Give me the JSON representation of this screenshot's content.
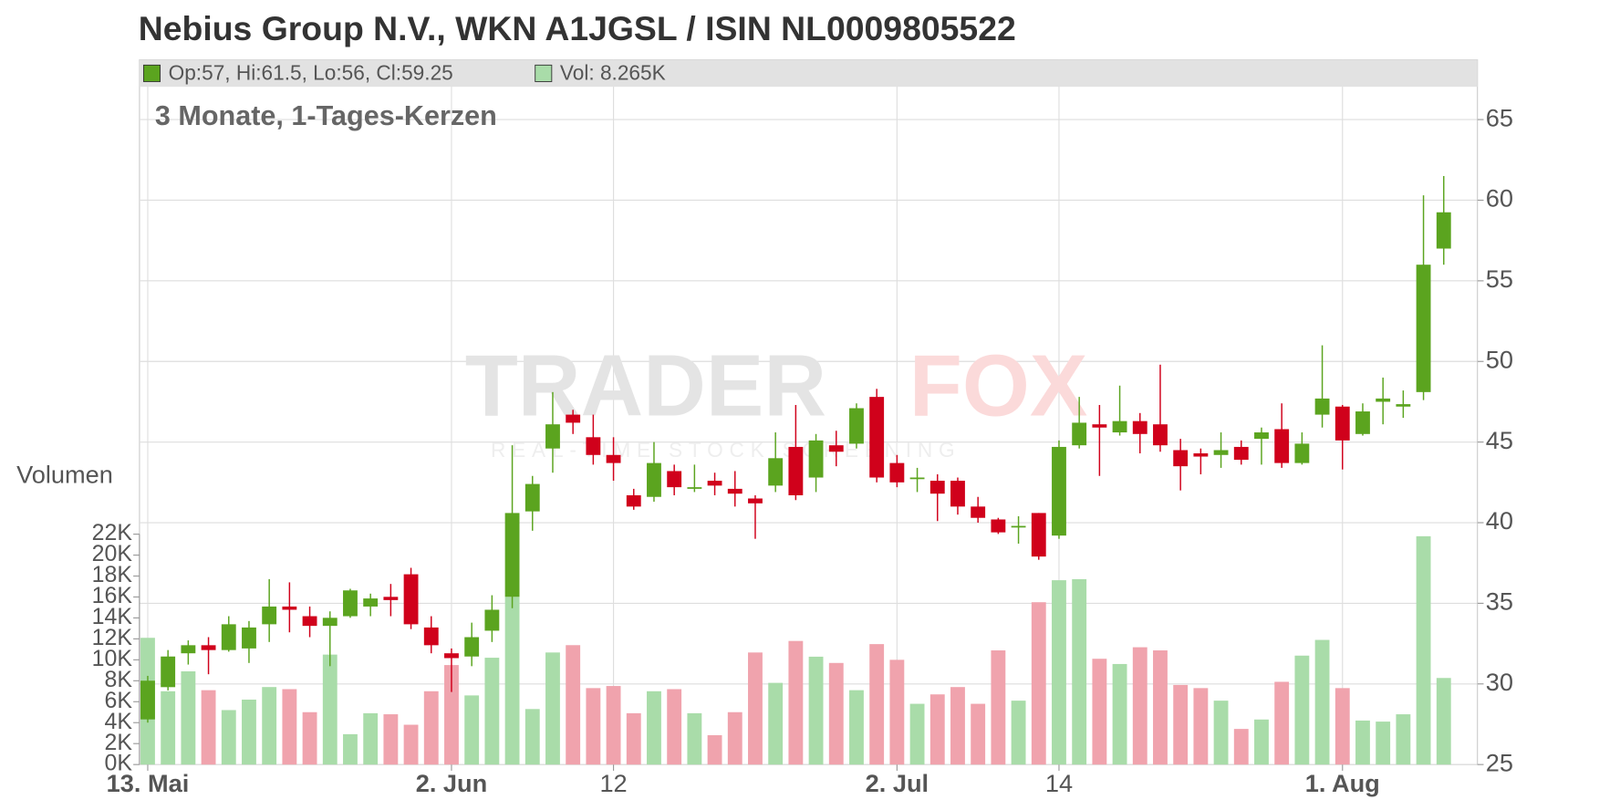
{
  "chart_data": {
    "type": "candlestick",
    "title": "Nebius Group N.V., WKN A1JGSL / ISIN NL0009805522",
    "subtitle": "3 Monate, 1-Tages-Kerzen",
    "header_ohlc": "Op:57, Hi:61.5, Lo:56, Cl:59.25",
    "header_volume": "Vol: 8.265K",
    "volume_axis_label": "Volumen",
    "watermark": [
      "TRADER",
      "FOX"
    ],
    "watermark_subtitle": "REAL-TIME STOCK SCREENING",
    "categories": [
      "13. Mai",
      null,
      null,
      null,
      null,
      null,
      null,
      null,
      null,
      null,
      null,
      null,
      null,
      null,
      null,
      "2. Jun",
      null,
      null,
      null,
      null,
      null,
      null,
      null,
      "12",
      null,
      null,
      null,
      null,
      null,
      null,
      null,
      null,
      null,
      null,
      null,
      null,
      null,
      "2. Jul",
      null,
      null,
      null,
      null,
      null,
      null,
      null,
      "14",
      null,
      null,
      null,
      null,
      null,
      null,
      null,
      null,
      null,
      null,
      null,
      null,
      null,
      "1. Aug",
      null,
      null,
      null,
      null,
      null
    ],
    "open": [
      27.8,
      29.8,
      31.9,
      32.4,
      32.1,
      32.2,
      33.7,
      34.8,
      34.2,
      33.6,
      34.2,
      34.8,
      35.4,
      36.8,
      33.5,
      31.9,
      31.7,
      33.3,
      35.4,
      40.7,
      44.6,
      46.7,
      45.3,
      44.2,
      41.7,
      41.6,
      43.2,
      42.1,
      42.6,
      42.1,
      41.5,
      42.3,
      44.7,
      42.8,
      44.8,
      44.9,
      47.8,
      43.7,
      42.7,
      42.6,
      42.6,
      41.0,
      40.2,
      39.7,
      40.6,
      39.2,
      44.8,
      46.1,
      45.6,
      46.3,
      46.1,
      44.5,
      44.3,
      44.2,
      44.7,
      45.2,
      45.8,
      43.7,
      46.7,
      47.2,
      45.5,
      47.5,
      47.2,
      48.1,
      57
    ],
    "high": [
      30.5,
      32.1,
      32.7,
      32.9,
      34.2,
      33.9,
      36.5,
      36.3,
      34.8,
      34.5,
      35.9,
      35.6,
      36.2,
      37.2,
      34.2,
      32.2,
      33.8,
      35.5,
      44.8,
      42.9,
      48.1,
      47.0,
      46.7,
      45.3,
      42.1,
      45.0,
      43.6,
      43.6,
      43.1,
      43.2,
      41.7,
      45.6,
      47.3,
      45.5,
      45.7,
      47.4,
      48.3,
      44.2,
      43.4,
      43.0,
      42.8,
      41.6,
      40.3,
      40.4,
      40.6,
      45.1,
      47.8,
      47.3,
      48.5,
      46.8,
      49.8,
      45.2,
      44.6,
      45.6,
      45.1,
      45.9,
      47.4,
      45.6,
      51.0,
      47.3,
      47.4,
      49.0,
      48.2,
      60.3,
      61.5
    ],
    "low": [
      27.6,
      29.6,
      31.2,
      30.6,
      32.0,
      31.3,
      32.6,
      33.2,
      32.9,
      31.1,
      34.1,
      34.2,
      34.2,
      33.4,
      31.9,
      29.5,
      31.1,
      32.6,
      34.7,
      39.5,
      43.1,
      45.5,
      43.6,
      42.6,
      40.8,
      41.3,
      41.7,
      41.9,
      41.7,
      41.0,
      39.0,
      41.9,
      41.4,
      41.9,
      43.5,
      44.6,
      42.5,
      42.2,
      41.9,
      40.1,
      40.5,
      40.0,
      39.3,
      38.7,
      37.7,
      39.0,
      44.6,
      42.9,
      45.4,
      44.3,
      44.4,
      42.0,
      43.0,
      43.4,
      43.6,
      43.6,
      43.4,
      43.6,
      45.9,
      43.3,
      45.4,
      46.1,
      46.5,
      47.6,
      56
    ],
    "close": [
      30.2,
      31.7,
      32.4,
      32.1,
      33.7,
      33.5,
      34.8,
      34.6,
      33.6,
      34.1,
      35.8,
      35.3,
      35.2,
      33.7,
      32.4,
      31.6,
      32.9,
      34.6,
      40.6,
      42.4,
      46.1,
      46.2,
      44.2,
      43.7,
      41.0,
      43.7,
      42.2,
      42.2,
      42.3,
      41.8,
      41.2,
      44.0,
      41.7,
      45.1,
      44.4,
      47.1,
      42.8,
      42.5,
      42.8,
      41.8,
      41.0,
      40.3,
      39.4,
      39.8,
      37.9,
      44.7,
      46.2,
      45.9,
      46.3,
      45.5,
      44.8,
      43.5,
      44.1,
      44.5,
      43.9,
      45.6,
      43.7,
      44.9,
      47.7,
      45.1,
      46.9,
      47.7,
      47.35,
      56.0,
      59.25
    ],
    "volume": [
      12.1,
      7.0,
      8.9,
      7.1,
      5.2,
      6.2,
      7.4,
      7.2,
      5.0,
      10.5,
      2.9,
      4.9,
      4.8,
      3.8,
      7.0,
      9.5,
      6.6,
      10.2,
      16.0,
      5.3,
      10.7,
      11.4,
      7.3,
      7.5,
      4.9,
      7.0,
      7.2,
      4.9,
      2.8,
      5.0,
      10.7,
      7.8,
      11.8,
      10.3,
      9.7,
      7.1,
      11.5,
      10.0,
      5.8,
      6.7,
      7.4,
      5.8,
      10.9,
      6.1,
      15.5,
      17.6,
      17.7,
      10.1,
      9.6,
      11.2,
      10.9,
      7.6,
      7.3,
      6.1,
      3.4,
      4.3,
      7.9,
      10.4,
      11.9,
      7.3,
      4.2,
      4.1,
      4.8,
      21.8,
      8.265
    ],
    "up_color": "#5ba41f",
    "down_color": "#d0011b",
    "volume_up_color": "#a9dca9",
    "volume_down_color": "#f0a3ad",
    "ylim": [
      25,
      68.7
    ],
    "yticks": [
      25,
      30,
      35,
      40,
      45,
      50,
      55,
      60,
      65
    ],
    "y2lim": [
      0,
      22
    ],
    "y2ticks": [
      {
        "value": 0,
        "label": "0K"
      },
      {
        "value": 2,
        "label": "2K"
      },
      {
        "value": 4,
        "label": "4K"
      },
      {
        "value": 6,
        "label": "6K"
      },
      {
        "value": 8,
        "label": "8K"
      },
      {
        "value": 10,
        "label": "10K"
      },
      {
        "value": 12,
        "label": "12K"
      },
      {
        "value": 14,
        "label": "14K"
      },
      {
        "value": 16,
        "label": "16K"
      },
      {
        "value": 18,
        "label": "18K"
      },
      {
        "value": 20,
        "label": "20K"
      },
      {
        "value": 22,
        "label": "22K"
      }
    ],
    "grid": true
  }
}
